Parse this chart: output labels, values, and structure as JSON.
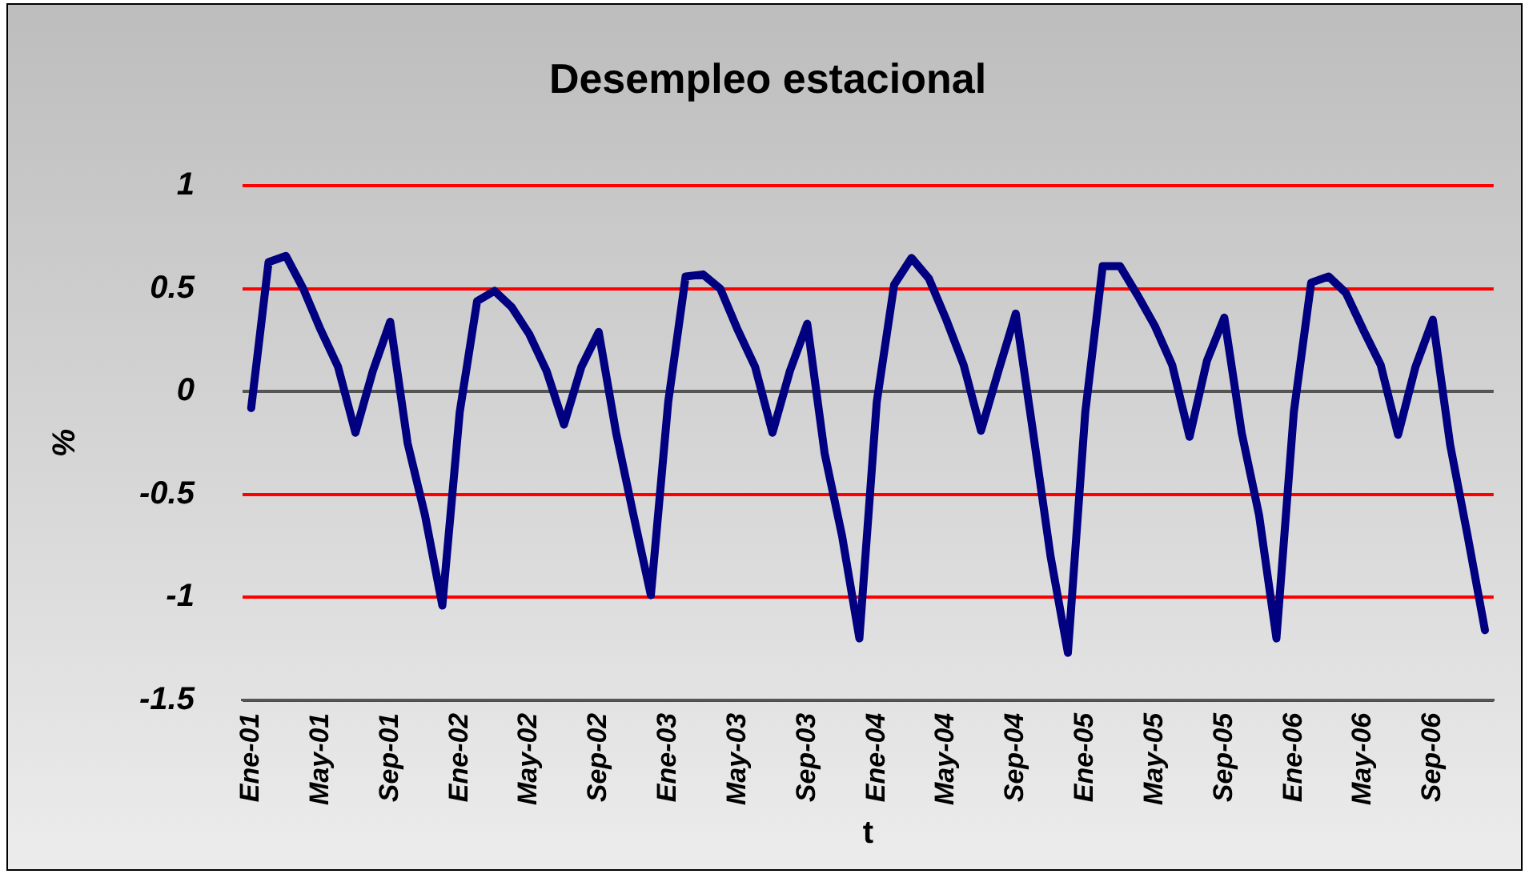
{
  "chart_data": {
    "type": "line",
    "title": "Desempleo estacional",
    "xlabel": "t",
    "ylabel": "%",
    "categories": [
      "Ene-01",
      null,
      null,
      null,
      "May-01",
      null,
      null,
      null,
      "Sep-01",
      null,
      null,
      null,
      "Ene-02",
      null,
      null,
      null,
      "May-02",
      null,
      null,
      null,
      "Sep-02",
      null,
      null,
      null,
      "Ene-03",
      null,
      null,
      null,
      "May-03",
      null,
      null,
      null,
      "Sep-03",
      null,
      null,
      null,
      "Ene-04",
      null,
      null,
      null,
      "May-04",
      null,
      null,
      null,
      "Sep-04",
      null,
      null,
      null,
      "Ene-05",
      null,
      null,
      null,
      "May-05",
      null,
      null,
      null,
      "Sep-05",
      null,
      null,
      null,
      "Ene-06",
      null,
      null,
      null,
      "May-06",
      null,
      null,
      null,
      "Sep-06",
      null,
      null,
      null
    ],
    "series": [
      {
        "color": "#000080",
        "values": [
          -0.08,
          0.63,
          0.66,
          0.5,
          0.3,
          0.12,
          -0.2,
          0.1,
          0.34,
          -0.25,
          -0.6,
          -1.04,
          -0.1,
          0.44,
          0.49,
          0.41,
          0.28,
          0.1,
          -0.16,
          0.12,
          0.29,
          -0.2,
          -0.6,
          -0.99,
          -0.05,
          0.56,
          0.57,
          0.5,
          0.3,
          0.12,
          -0.2,
          0.1,
          0.33,
          -0.3,
          -0.7,
          -1.2,
          -0.05,
          0.52,
          0.65,
          0.55,
          0.35,
          0.13,
          -0.19,
          0.1,
          0.38,
          -0.2,
          -0.8,
          -1.27,
          -0.1,
          0.61,
          0.61,
          0.47,
          0.32,
          0.13,
          -0.22,
          0.15,
          0.36,
          -0.2,
          -0.6,
          -1.2,
          -0.1,
          0.53,
          0.56,
          0.48,
          0.3,
          0.13,
          -0.21,
          0.12,
          0.35,
          -0.26,
          -0.7,
          -1.16
        ]
      }
    ],
    "ylim": [
      -1.5,
      1
    ],
    "yticks": [
      -1.5,
      -1,
      -0.5,
      0,
      0.5,
      1
    ],
    "grid": "y",
    "legend": false,
    "marker": "none",
    "line_style": "solid"
  }
}
